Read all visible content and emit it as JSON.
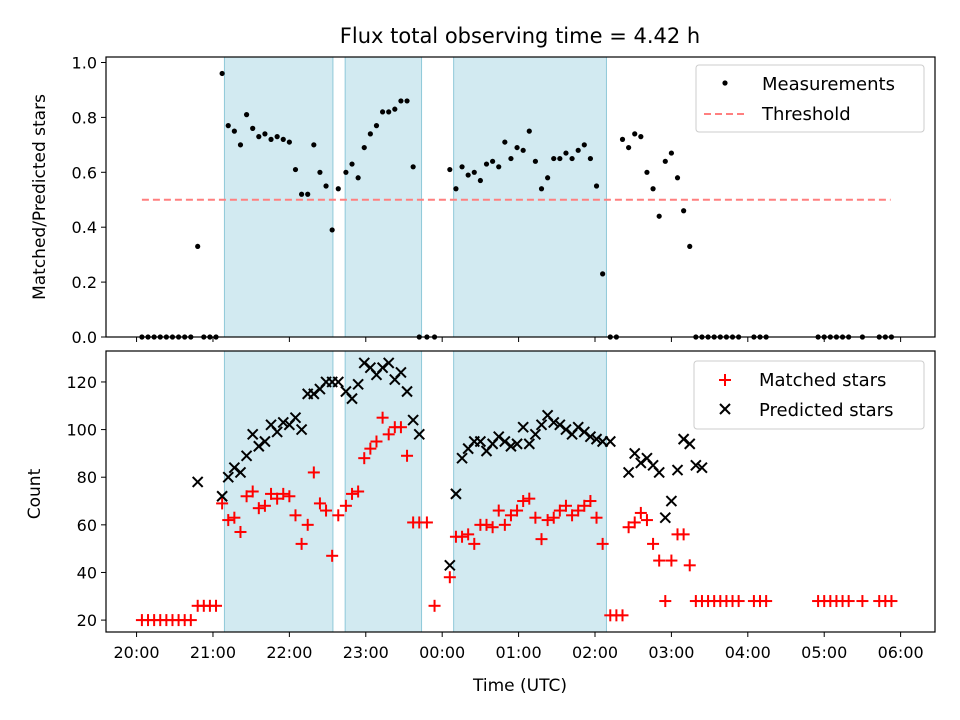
{
  "chart_data": [
    {
      "type": "scatter",
      "title": "Flux total observing time = 4.42 h",
      "ylabel": "Matched/Predicted stars",
      "xlabel": "",
      "x_unit": "hours (UTC, values past 24 = next day)",
      "xlim": [
        19.6,
        30.45
      ],
      "ylim": [
        0,
        1.02
      ],
      "yticks": [
        0.0,
        0.2,
        0.4,
        0.6,
        0.8,
        1.0
      ],
      "ytick_labels": [
        "0.0",
        "0.2",
        "0.4",
        "0.6",
        "0.8",
        "1.0"
      ],
      "shaded_intervals": [
        [
          21.15,
          22.57
        ],
        [
          22.73,
          23.73
        ],
        [
          24.15,
          26.15
        ]
      ],
      "shade_color": "#add8e6",
      "legend": {
        "placement": "top-right"
      },
      "threshold": {
        "name": "Threshold",
        "value": 0.5,
        "x_range": [
          20.07,
          29.87
        ],
        "color": "#ff7f7f"
      },
      "series": [
        {
          "name": "Measurements",
          "color": "#000000",
          "x": [
            20.07,
            20.15,
            20.23,
            20.31,
            20.39,
            20.47,
            20.55,
            20.63,
            20.71,
            20.8,
            20.88,
            20.96,
            21.04,
            21.12,
            21.2,
            21.28,
            21.36,
            21.44,
            21.52,
            21.6,
            21.68,
            21.76,
            21.84,
            21.92,
            22.0,
            22.08,
            22.16,
            22.24,
            22.32,
            22.4,
            22.48,
            22.56,
            22.64,
            22.74,
            22.82,
            22.9,
            22.98,
            23.06,
            23.14,
            23.22,
            23.3,
            23.38,
            23.46,
            23.54,
            23.62,
            23.7,
            23.8,
            23.9,
            24.1,
            24.18,
            24.26,
            24.34,
            24.42,
            24.5,
            24.58,
            24.66,
            24.74,
            24.82,
            24.9,
            24.98,
            25.06,
            25.14,
            25.22,
            25.3,
            25.38,
            25.46,
            25.54,
            25.62,
            25.7,
            25.78,
            25.86,
            25.94,
            26.02,
            26.1,
            26.2,
            26.28,
            26.36,
            26.44,
            26.52,
            26.6,
            26.68,
            26.76,
            26.84,
            26.92,
            27.0,
            27.08,
            27.16,
            27.24,
            27.32,
            27.4,
            27.48,
            27.56,
            27.64,
            27.72,
            27.8,
            27.88,
            28.08,
            28.16,
            28.24,
            28.92,
            29.0,
            29.08,
            29.16,
            29.24,
            29.32,
            29.5,
            29.72,
            29.8,
            29.88
          ],
          "y": [
            0,
            0,
            0,
            0,
            0,
            0,
            0,
            0,
            0,
            0.33,
            0,
            0,
            0,
            0.96,
            0.77,
            0.75,
            0.7,
            0.81,
            0.76,
            0.73,
            0.74,
            0.72,
            0.73,
            0.72,
            0.71,
            0.61,
            0.52,
            0.52,
            0.7,
            0.6,
            0.55,
            0.39,
            0.54,
            0.6,
            0.63,
            0.58,
            0.69,
            0.74,
            0.77,
            0.82,
            0.82,
            0.83,
            0.86,
            0.86,
            0.62,
            0,
            0,
            0,
            0.61,
            0.54,
            0.62,
            0.59,
            0.6,
            0.57,
            0.63,
            0.64,
            0.62,
            0.71,
            0.65,
            0.69,
            0.68,
            0.75,
            0.64,
            0.54,
            0.58,
            0.65,
            0.65,
            0.67,
            0.65,
            0.68,
            0.7,
            0.65,
            0.55,
            0.23,
            0,
            0,
            0.72,
            0.69,
            0.74,
            0.73,
            0.6,
            0.54,
            0.44,
            0.64,
            0.67,
            0.58,
            0.46,
            0.33,
            0,
            0,
            0,
            0,
            0,
            0,
            0,
            0,
            0,
            0,
            0,
            0,
            0,
            0,
            0,
            0,
            0,
            0,
            0,
            0,
            0
          ]
        }
      ]
    },
    {
      "type": "scatter",
      "title": "",
      "ylabel": "Count",
      "xlabel": "Time (UTC)",
      "x_unit": "hours (UTC, values past 24 = next day)",
      "xlim": [
        19.6,
        30.45
      ],
      "ylim": [
        15,
        133
      ],
      "yticks": [
        20,
        40,
        60,
        80,
        100,
        120
      ],
      "ytick_labels": [
        "20",
        "40",
        "60",
        "80",
        "100",
        "120"
      ],
      "xticks": [
        20,
        21,
        22,
        23,
        24,
        25,
        26,
        27,
        28,
        29,
        30
      ],
      "xtick_labels": [
        "20:00",
        "21:00",
        "22:00",
        "23:00",
        "00:00",
        "01:00",
        "02:00",
        "03:00",
        "04:00",
        "05:00",
        "06:00"
      ],
      "shaded_intervals": [
        [
          21.15,
          22.57
        ],
        [
          22.73,
          23.73
        ],
        [
          24.15,
          26.15
        ]
      ],
      "shade_color": "#add8e6",
      "legend": {
        "placement": "top-right"
      },
      "series": [
        {
          "name": "Matched stars",
          "color": "#ff0000",
          "marker": "plus",
          "x": [
            20.07,
            20.15,
            20.23,
            20.31,
            20.39,
            20.47,
            20.55,
            20.63,
            20.71,
            20.8,
            20.88,
            20.96,
            21.04,
            21.12,
            21.2,
            21.28,
            21.36,
            21.44,
            21.52,
            21.6,
            21.68,
            21.76,
            21.84,
            21.92,
            22.0,
            22.08,
            22.16,
            22.24,
            22.32,
            22.4,
            22.48,
            22.56,
            22.64,
            22.74,
            22.82,
            22.9,
            22.98,
            23.06,
            23.14,
            23.22,
            23.3,
            23.38,
            23.46,
            23.54,
            23.62,
            23.7,
            23.8,
            23.9,
            24.1,
            24.18,
            24.26,
            24.34,
            24.42,
            24.5,
            24.58,
            24.66,
            24.74,
            24.82,
            24.9,
            24.98,
            25.06,
            25.14,
            25.22,
            25.3,
            25.38,
            25.46,
            25.54,
            25.62,
            25.7,
            25.78,
            25.86,
            25.94,
            26.02,
            26.1,
            26.2,
            26.28,
            26.36,
            26.44,
            26.52,
            26.6,
            26.68,
            26.76,
            26.84,
            26.92,
            27.0,
            27.08,
            27.16,
            27.24,
            27.32,
            27.4,
            27.48,
            27.56,
            27.64,
            27.72,
            27.8,
            27.88,
            28.08,
            28.16,
            28.24,
            28.92,
            29.0,
            29.08,
            29.16,
            29.24,
            29.32,
            29.5,
            29.72,
            29.8,
            29.88
          ],
          "y": [
            20,
            20,
            20,
            20,
            20,
            20,
            20,
            20,
            20,
            26,
            26,
            26,
            26,
            69,
            62,
            63,
            57,
            72,
            74,
            67,
            68,
            73,
            71,
            73,
            72,
            64,
            52,
            60,
            82,
            69,
            66,
            47,
            64,
            68,
            73,
            74,
            88,
            92,
            95,
            105,
            98,
            101,
            101,
            89,
            61,
            61,
            61,
            26,
            38,
            55,
            55,
            56,
            52,
            60,
            60,
            59,
            66,
            60,
            64,
            66,
            70,
            71,
            63,
            54,
            62,
            63,
            66,
            68,
            64,
            66,
            68,
            70,
            63,
            52,
            22,
            22,
            22,
            59,
            61,
            65,
            62,
            52,
            45,
            28,
            45,
            56,
            56,
            43,
            28,
            28,
            28,
            28,
            28,
            28,
            28,
            28,
            28,
            28,
            28,
            28,
            28,
            28,
            28,
            28,
            28,
            28,
            28,
            28,
            28
          ]
        },
        {
          "name": "Predicted stars",
          "color": "#000000",
          "marker": "x",
          "x": [
            20.8,
            21.12,
            21.2,
            21.28,
            21.36,
            21.44,
            21.52,
            21.6,
            21.68,
            21.76,
            21.84,
            21.92,
            22.0,
            22.08,
            22.16,
            22.24,
            22.32,
            22.4,
            22.48,
            22.56,
            22.64,
            22.74,
            22.82,
            22.9,
            22.98,
            23.06,
            23.14,
            23.22,
            23.3,
            23.38,
            23.46,
            23.54,
            23.62,
            23.7,
            24.1,
            24.18,
            24.26,
            24.34,
            24.42,
            24.5,
            24.58,
            24.66,
            24.74,
            24.82,
            24.9,
            24.98,
            25.06,
            25.14,
            25.22,
            25.3,
            25.38,
            25.46,
            25.54,
            25.62,
            25.7,
            25.78,
            25.86,
            25.94,
            26.02,
            26.1,
            26.2,
            26.44,
            26.52,
            26.6,
            26.68,
            26.76,
            26.84,
            26.92,
            27.0,
            27.08,
            27.16,
            27.24,
            27.32,
            27.4
          ],
          "y": [
            78,
            72,
            80,
            84,
            82,
            89,
            98,
            93,
            95,
            102,
            99,
            103,
            102,
            105,
            100,
            115,
            115,
            117,
            120,
            120,
            120,
            116,
            113,
            119,
            128,
            126,
            123,
            126,
            128,
            121,
            124,
            116,
            104,
            98,
            43,
            73,
            88,
            92,
            95,
            95,
            91,
            94,
            97,
            95,
            93,
            94,
            101,
            94,
            98,
            102,
            106,
            103,
            102,
            100,
            98,
            101,
            99,
            97,
            96,
            95,
            95,
            82,
            90,
            86,
            88,
            85,
            82,
            63,
            70,
            83,
            96,
            94,
            85,
            84
          ]
        }
      ]
    }
  ]
}
